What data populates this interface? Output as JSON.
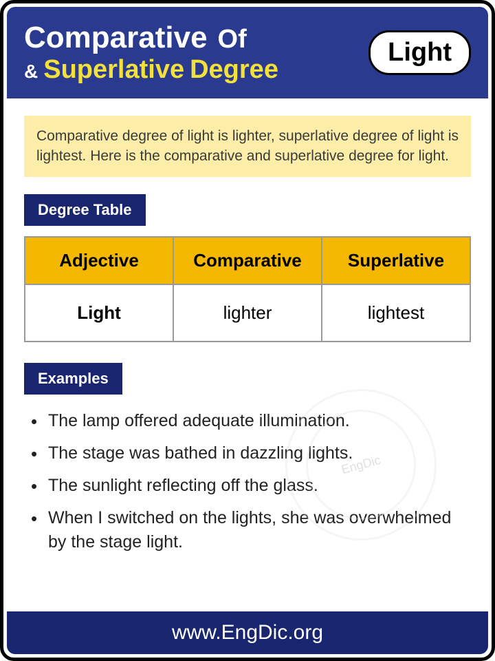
{
  "header": {
    "comparative": "Comparative",
    "of": "Of",
    "ampersand": "&",
    "superlative": "Superlative",
    "degree": "Degree",
    "word": "Light"
  },
  "description": "Comparative degree of light is lighter, superlative degree of light is lightest. Here is the comparative and superlative degree for light.",
  "sections": {
    "table_label": "Degree Table",
    "examples_label": "Examples"
  },
  "table": {
    "columns": [
      "Adjective",
      "Comparative",
      "Superlative"
    ],
    "rows": [
      [
        "Light",
        "lighter",
        "lightest"
      ]
    ],
    "header_bg": "#f5b800",
    "header_color": "#000000",
    "border_color": "#999999",
    "header_fontsize": 26,
    "cell_fontsize": 26
  },
  "examples": [
    "The lamp offered adequate illumination.",
    "The stage was bathed in dazzling lights.",
    "The sunlight reflecting off the glass.",
    "When I switched on the lights, she was overwhelmed by the stage light."
  ],
  "footer": "www.EngDic.org",
  "watermark": "EngDic",
  "colors": {
    "header_bg": "#2a3a8f",
    "label_bg": "#1a2570",
    "description_bg": "#fceea8",
    "yellow_text": "#f2e03b",
    "white": "#ffffff",
    "black": "#000000"
  }
}
